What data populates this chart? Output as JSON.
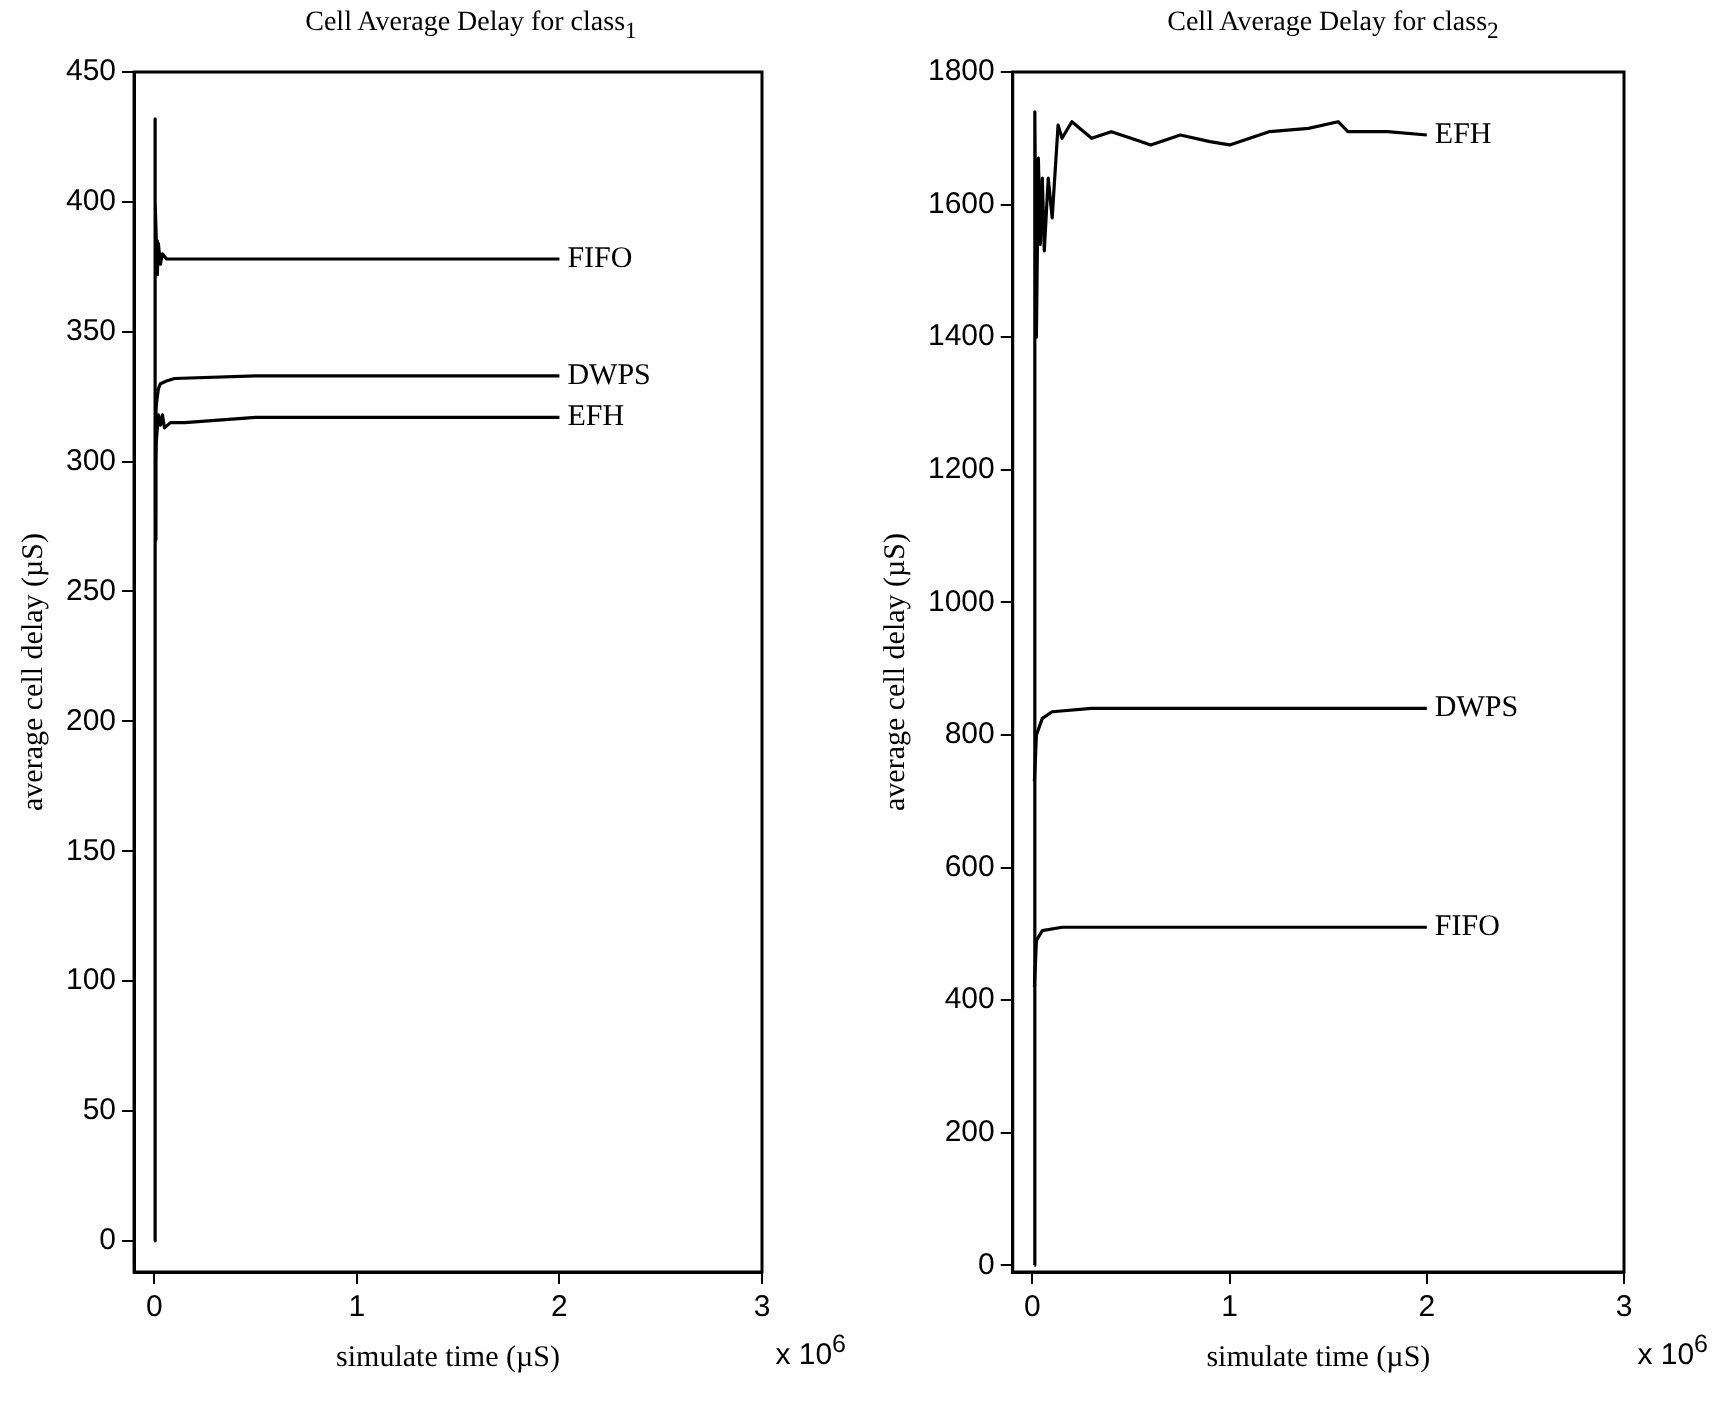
{
  "chart_data": [
    {
      "type": "line",
      "title": "Cell Average Delay for class$_{1}$",
      "xlabel": "simulate time (µS)",
      "ylabel": "average cell delay (µS)",
      "annotations": [
        "x 10$^{6}$"
      ],
      "xlim": [
        -0.1,
        3
      ],
      "xticks": [
        0,
        1,
        2,
        3
      ],
      "ylim": [
        -12,
        450
      ],
      "yticks": [
        0,
        50,
        100,
        150,
        200,
        250,
        300,
        350,
        400,
        450
      ],
      "grid": false,
      "legend": false,
      "marker": "none",
      "line_style": "solid",
      "series": [
        {
          "name": "FIFO",
          "color": "#000000",
          "x": [
            0,
            0.002,
            0.006,
            0.01,
            0.015,
            0.02,
            0.03,
            0.04,
            0.06,
            0.1,
            0.5,
            2
          ],
          "values": [
            0,
            432,
            400,
            385,
            372,
            384,
            376,
            380,
            378,
            378,
            378,
            378
          ]
        },
        {
          "name": "DWPS",
          "color": "#000000",
          "x": [
            0.003,
            0.006,
            0.01,
            0.02,
            0.03,
            0.06,
            0.1,
            0.5,
            1,
            2
          ],
          "values": [
            280,
            315,
            322,
            328,
            330,
            331,
            332,
            333,
            333,
            333
          ]
        },
        {
          "name": "EFH",
          "color": "#000000",
          "x": [
            0.005,
            0.008,
            0.01,
            0.02,
            0.03,
            0.04,
            0.05,
            0.08,
            0.15,
            0.5,
            1,
            2
          ],
          "values": [
            270,
            300,
            308,
            318,
            314,
            318,
            313,
            315,
            315,
            317,
            317,
            317
          ]
        }
      ]
    },
    {
      "type": "line",
      "title": "Cell Average Delay for class$_{2}$",
      "xlabel": "simulate time (µS)",
      "ylabel": "average cell delay (µS)",
      "annotations": [
        "x 10$^{6}$"
      ],
      "xlim": [
        -0.1,
        3
      ],
      "xticks": [
        0,
        1,
        2,
        3
      ],
      "ylim": [
        -10,
        1800
      ],
      "yticks": [
        0,
        200,
        400,
        600,
        800,
        1000,
        1200,
        1400,
        1600,
        1800
      ],
      "grid": false,
      "legend": false,
      "marker": "none",
      "line_style": "solid",
      "series": [
        {
          "name": "EFH",
          "color": "#000000",
          "x": [
            0.01,
            0.012,
            0.02,
            0.03,
            0.04,
            0.05,
            0.06,
            0.08,
            0.1,
            0.13,
            0.15,
            0.2,
            0.3,
            0.4,
            0.5,
            0.6,
            0.75,
            0.9,
            1.0,
            1.2,
            1.4,
            1.55,
            1.6,
            1.8,
            2
          ],
          "values": [
            0,
            1740,
            1400,
            1670,
            1540,
            1640,
            1530,
            1640,
            1580,
            1720,
            1700,
            1725,
            1700,
            1710,
            1700,
            1690,
            1705,
            1695,
            1690,
            1710,
            1715,
            1725,
            1710,
            1710,
            1705
          ]
        },
        {
          "name": "DWPS",
          "color": "#000000",
          "x": [
            0.01,
            0.02,
            0.05,
            0.1,
            0.3,
            1,
            2
          ],
          "values": [
            730,
            800,
            825,
            835,
            840,
            840,
            840
          ]
        },
        {
          "name": "FIFO",
          "color": "#000000",
          "x": [
            0.01,
            0.02,
            0.05,
            0.15,
            0.5,
            2
          ],
          "values": [
            420,
            490,
            505,
            510,
            510,
            510
          ]
        }
      ]
    }
  ]
}
